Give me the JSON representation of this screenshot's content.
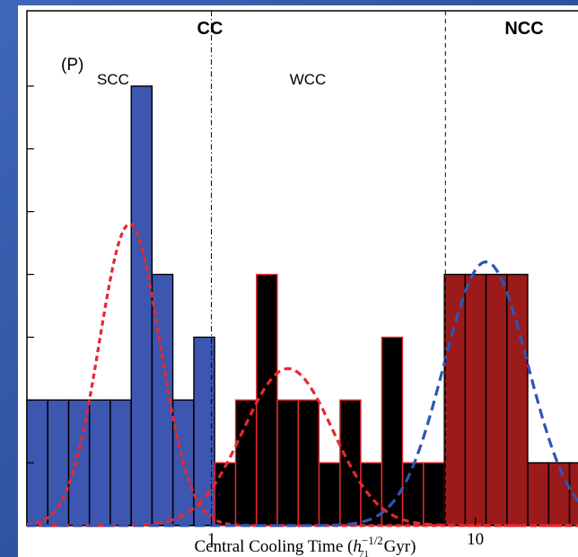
{
  "chart_data": {
    "type": "bar",
    "panel_label": "(P)",
    "xlabel_main": "Central Cooling Time (",
    "xlabel_h": "h",
    "xlabel_sup": "−1/2",
    "xlabel_sub": "71",
    "xlabel_unit": " Gyr)",
    "x_scale": "log",
    "xlim": [
      0.2,
      30
    ],
    "ylim": [
      0,
      8.2
    ],
    "x_ticks": [
      {
        "value": 1,
        "label": "1"
      },
      {
        "value": 10,
        "label": "10"
      }
    ],
    "region_labels": {
      "cc": "CC",
      "ncc": "NCC",
      "scc": "SCC",
      "wcc": "WCC"
    },
    "dividers": [
      {
        "value": 1.0,
        "style": "dash-dot"
      },
      {
        "value": 7.7,
        "style": "dashed"
      }
    ],
    "bin_width_log10": 0.0785,
    "bars": [
      {
        "x_start": 0.2,
        "count": 2,
        "group": "scc"
      },
      {
        "x_start": 0.24,
        "count": 2,
        "group": "scc"
      },
      {
        "x_start": 0.288,
        "count": 2,
        "group": "scc"
      },
      {
        "x_start": 0.345,
        "count": 2,
        "group": "scc"
      },
      {
        "x_start": 0.414,
        "count": 2,
        "group": "scc"
      },
      {
        "x_start": 0.497,
        "count": 7,
        "group": "scc"
      },
      {
        "x_start": 0.596,
        "count": 4,
        "group": "scc"
      },
      {
        "x_start": 0.715,
        "count": 2,
        "group": "scc"
      },
      {
        "x_start": 0.858,
        "count": 3,
        "group": "scc"
      },
      {
        "x_start": 1.03,
        "count": 1,
        "group": "wcc"
      },
      {
        "x_start": 1.235,
        "count": 2,
        "group": "wcc"
      },
      {
        "x_start": 1.482,
        "count": 4,
        "group": "wcc"
      },
      {
        "x_start": 1.778,
        "count": 2,
        "group": "wcc"
      },
      {
        "x_start": 2.133,
        "count": 2,
        "group": "wcc"
      },
      {
        "x_start": 2.559,
        "count": 1,
        "group": "wcc"
      },
      {
        "x_start": 3.07,
        "count": 2,
        "group": "wcc"
      },
      {
        "x_start": 3.683,
        "count": 1,
        "group": "wcc"
      },
      {
        "x_start": 4.419,
        "count": 3,
        "group": "wcc"
      },
      {
        "x_start": 5.302,
        "count": 1,
        "group": "wcc"
      },
      {
        "x_start": 6.361,
        "count": 1,
        "group": "wcc"
      },
      {
        "x_start": 7.63,
        "count": 4,
        "group": "ncc"
      },
      {
        "x_start": 9.15,
        "count": 4,
        "group": "ncc"
      },
      {
        "x_start": 10.98,
        "count": 4,
        "group": "ncc"
      },
      {
        "x_start": 13.17,
        "count": 4,
        "group": "ncc"
      },
      {
        "x_start": 15.8,
        "count": 1,
        "group": "ncc"
      },
      {
        "x_start": 18.96,
        "count": 1,
        "group": "ncc"
      },
      {
        "x_start": 22.75,
        "count": 1,
        "group": "ncc"
      }
    ],
    "fits": [
      {
        "group": "scc",
        "mu_log10": -0.31,
        "sigma_log10": 0.115,
        "peak": 4.8,
        "color": "#e8282d",
        "style": "short-dash"
      },
      {
        "group": "wcc",
        "mu_log10": 0.29,
        "sigma_log10": 0.17,
        "peak": 2.5,
        "color": "#e8282d",
        "style": "dash"
      },
      {
        "group": "ncc",
        "mu_log10": 1.04,
        "sigma_log10": 0.16,
        "peak": 4.2,
        "color": "#2f55b5",
        "style": "long-dash"
      }
    ],
    "colors": {
      "scc_fill": "#3d56b0",
      "scc_edge": "#000000",
      "wcc_fill": "#000000",
      "wcc_edge": "#e8282d",
      "ncc_fill": "#9b1a1a",
      "ncc_edge": "#000000"
    }
  }
}
